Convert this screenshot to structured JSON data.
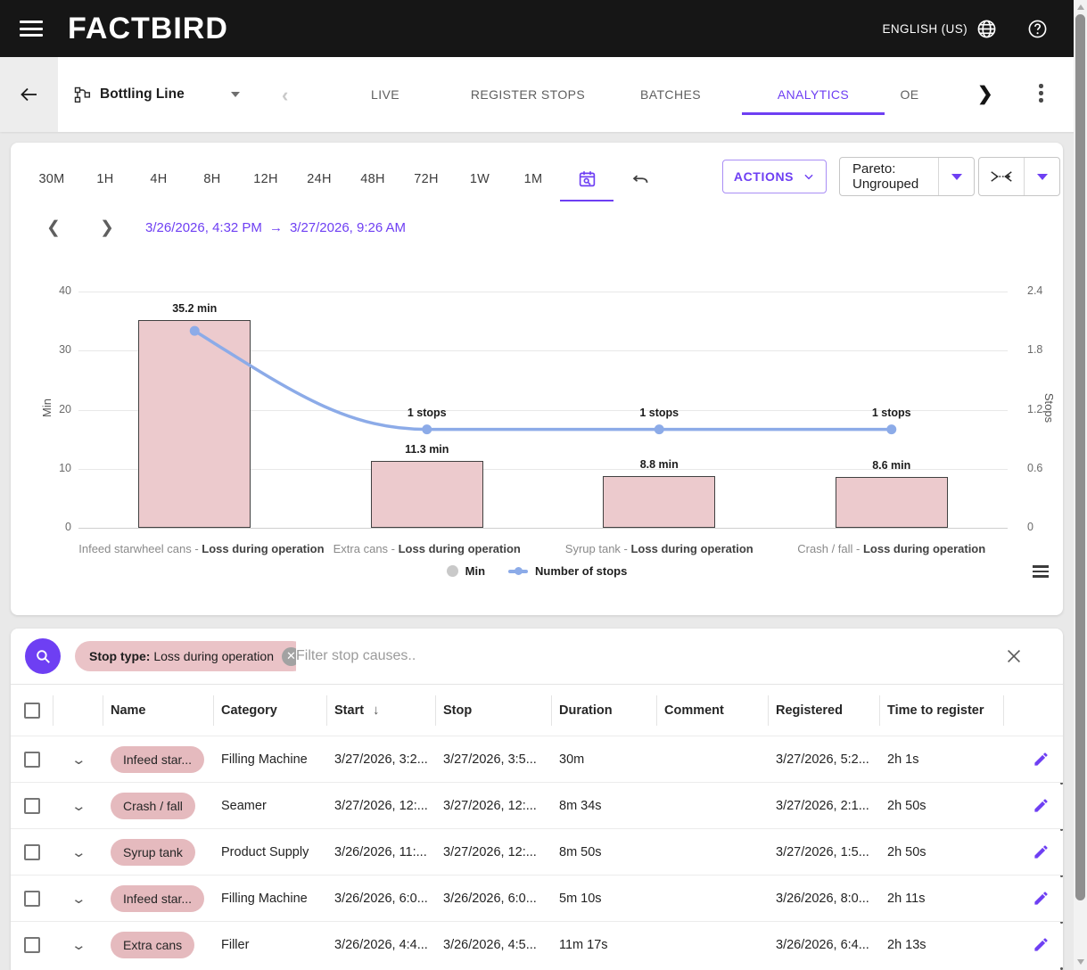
{
  "header": {
    "logo": "FACTBIRD",
    "language": "ENGLISH (US)"
  },
  "nav": {
    "line_name": "Bottling Line",
    "tabs": [
      "LIVE",
      "REGISTER STOPS",
      "BATCHES",
      "ANALYTICS",
      "OE"
    ],
    "active_tab": "ANALYTICS"
  },
  "toolbar": {
    "ranges": [
      "30M",
      "1H",
      "4H",
      "8H",
      "12H",
      "24H",
      "48H",
      "72H",
      "1W",
      "1M"
    ],
    "actions_label": "ACTIONS",
    "pareto_label": "Pareto: Ungrouped"
  },
  "date_nav": {
    "start": "3/26/2026, 4:32 PM",
    "arrow": "→",
    "end": "3/27/2026, 9:26 AM"
  },
  "chart_data": {
    "type": "bar",
    "subtype": "pareto bar + line combo",
    "categories": [
      "Infeed starwheel cans",
      "Extra cans",
      "Syrup tank",
      "Crash / fall"
    ],
    "category_suffix": "Loss during operation",
    "category_separator": " - ",
    "series": [
      {
        "name": "Min",
        "type": "bar",
        "values": [
          35.2,
          11.3,
          8.8,
          8.6
        ],
        "labels": [
          "35.2 min",
          "11.3 min",
          "8.8 min",
          "8.6 min"
        ],
        "color": "#eccacd"
      },
      {
        "name": "Number of stops",
        "type": "line",
        "values": [
          2,
          1,
          1,
          1
        ],
        "labels": [
          null,
          "1 stops",
          "1 stops",
          "1 stops"
        ],
        "color": "#8cabe8"
      }
    ],
    "left_axis": {
      "label": "Min",
      "ticks": [
        40,
        30,
        20,
        10,
        0
      ],
      "range": [
        0,
        40
      ]
    },
    "right_axis": {
      "label": "Stops",
      "ticks": [
        2.4,
        1.8,
        1.2,
        0.6,
        0
      ],
      "range": [
        0,
        2.4
      ]
    },
    "legend": [
      "Min",
      "Number of stops"
    ],
    "grid": true,
    "legend_position": "bottom"
  },
  "filter": {
    "chip_prefix": "Stop type:",
    "chip_value": "Loss during operation",
    "placeholder": "Filter stop causes.."
  },
  "table": {
    "columns": [
      "Name",
      "Category",
      "Start",
      "Stop",
      "Duration",
      "Comment",
      "Registered",
      "Time to register"
    ],
    "sorted_column": "Start",
    "sort_direction": "desc",
    "rows": [
      {
        "name": "Infeed star...",
        "category": "Filling Machine",
        "start": "3/27/2026, 3:2...",
        "stop": "3/27/2026, 3:5...",
        "duration": "30m",
        "comment": "",
        "registered": "3/27/2026, 5:2...",
        "time_to_register": "2h 1s"
      },
      {
        "name": "Crash / fall",
        "category": "Seamer",
        "start": "3/27/2026, 12:...",
        "stop": "3/27/2026, 12:...",
        "duration": "8m 34s",
        "comment": "",
        "registered": "3/27/2026, 2:1...",
        "time_to_register": "2h 50s"
      },
      {
        "name": "Syrup tank",
        "category": "Product Supply",
        "start": "3/26/2026, 11:...",
        "stop": "3/27/2026, 12:...",
        "duration": "8m 50s",
        "comment": "",
        "registered": "3/27/2026, 1:5...",
        "time_to_register": "2h 50s"
      },
      {
        "name": "Infeed star...",
        "category": "Filling Machine",
        "start": "3/26/2026, 6:0...",
        "stop": "3/26/2026, 6:0...",
        "duration": "5m 10s",
        "comment": "",
        "registered": "3/26/2026, 8:0...",
        "time_to_register": "2h 11s"
      },
      {
        "name": "Extra cans",
        "category": "Filler",
        "start": "3/26/2026, 4:4...",
        "stop": "3/26/2026, 4:5...",
        "duration": "11m 17s",
        "comment": "",
        "registered": "3/26/2026, 6:4...",
        "time_to_register": "2h 13s"
      }
    ]
  },
  "colors": {
    "accent_purple": "#6e3ff3",
    "bar_pink": "#eccacd",
    "chip_pink": "#e5babe",
    "line_blue": "#8cabe8",
    "appbar_black": "#161616"
  }
}
